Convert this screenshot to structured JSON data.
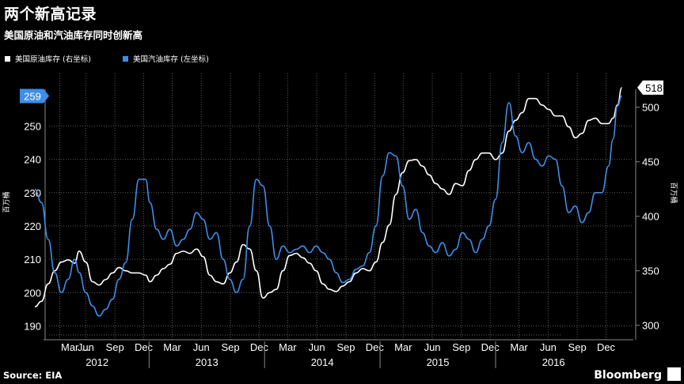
{
  "header": {
    "title": "两个新高记录",
    "subtitle": "美国原油和汽油库存同时创新高"
  },
  "footer": {
    "source": "Source: EIA",
    "brand": "Bloomberg"
  },
  "chart_data": {
    "type": "line",
    "title": "两个新高记录",
    "subtitle": "美国原油和汽油库存同时创新高",
    "legend_position": "top-left",
    "grid": true,
    "x_ticks": [
      "Mar ...",
      "Jun",
      "Sep",
      "Dec",
      "Mar",
      "Jun",
      "Sep",
      "Dec",
      "Mar",
      "Jun",
      "Sep",
      "Dec",
      "Mar",
      "Jun",
      "Sep",
      "Dec",
      "Mar",
      "Jun",
      "Sep",
      "Dec"
    ],
    "x_years": [
      "2012",
      "2013",
      "2014",
      "2015",
      "2016"
    ],
    "y_left": {
      "label": "百万桶",
      "ticks": [
        190,
        200,
        210,
        220,
        230,
        240,
        250
      ],
      "lim": [
        188,
        261
      ]
    },
    "y_right": {
      "label": "百万桶",
      "ticks": [
        300,
        350,
        400,
        450,
        500
      ],
      "lim": [
        294,
        520
      ]
    },
    "series": [
      {
        "name": "美国原油库存 (右坐标)",
        "axis": "right",
        "color": "#ffffff",
        "end_label": "518",
        "values": [
          [
            "2012-01-06",
            317
          ],
          [
            "2012-01-27",
            322
          ],
          [
            "2012-02-17",
            338
          ],
          [
            "2012-03-09",
            350
          ],
          [
            "2012-03-30",
            358
          ],
          [
            "2012-04-20",
            360
          ],
          [
            "2012-05-11",
            357
          ],
          [
            "2012-05-25",
            368
          ],
          [
            "2012-06-15",
            358
          ],
          [
            "2012-07-06",
            340
          ],
          [
            "2012-07-27",
            337
          ],
          [
            "2012-08-17",
            342
          ],
          [
            "2012-09-07",
            348
          ],
          [
            "2012-09-28",
            353
          ],
          [
            "2012-10-19",
            350
          ],
          [
            "2012-11-09",
            348
          ],
          [
            "2012-11-30",
            348
          ],
          [
            "2012-12-21",
            346
          ],
          [
            "2013-01-04",
            340
          ],
          [
            "2013-01-25",
            346
          ],
          [
            "2013-02-15",
            352
          ],
          [
            "2013-03-08",
            356
          ],
          [
            "2013-03-29",
            366
          ],
          [
            "2013-04-19",
            368
          ],
          [
            "2013-05-10",
            366
          ],
          [
            "2013-05-31",
            370
          ],
          [
            "2013-06-21",
            363
          ],
          [
            "2013-07-12",
            346
          ],
          [
            "2013-08-02",
            340
          ],
          [
            "2013-08-23",
            338
          ],
          [
            "2013-09-13",
            348
          ],
          [
            "2013-10-04",
            358
          ],
          [
            "2013-10-25",
            374
          ],
          [
            "2013-11-15",
            370
          ],
          [
            "2013-12-06",
            350
          ],
          [
            "2013-12-27",
            325
          ],
          [
            "2014-01-17",
            330
          ],
          [
            "2014-02-07",
            333
          ],
          [
            "2014-02-28",
            350
          ],
          [
            "2014-03-21",
            364
          ],
          [
            "2014-04-11",
            366
          ],
          [
            "2014-05-02",
            362
          ],
          [
            "2014-05-23",
            357
          ],
          [
            "2014-06-13",
            350
          ],
          [
            "2014-07-04",
            338
          ],
          [
            "2014-07-25",
            333
          ],
          [
            "2014-08-15",
            331
          ],
          [
            "2014-09-05",
            336
          ],
          [
            "2014-09-26",
            340
          ],
          [
            "2014-10-17",
            348
          ],
          [
            "2014-11-07",
            352
          ],
          [
            "2014-11-28",
            350
          ],
          [
            "2014-12-19",
            358
          ],
          [
            "2015-01-09",
            376
          ],
          [
            "2015-01-30",
            392
          ],
          [
            "2015-02-20",
            420
          ],
          [
            "2015-03-13",
            440
          ],
          [
            "2015-04-03",
            451
          ],
          [
            "2015-04-24",
            452
          ],
          [
            "2015-05-15",
            446
          ],
          [
            "2015-06-05",
            438
          ],
          [
            "2015-06-26",
            430
          ],
          [
            "2015-07-17",
            425
          ],
          [
            "2015-08-07",
            420
          ],
          [
            "2015-08-28",
            430
          ],
          [
            "2015-09-18",
            428
          ],
          [
            "2015-10-09",
            442
          ],
          [
            "2015-10-30",
            452
          ],
          [
            "2015-11-20",
            458
          ],
          [
            "2015-12-11",
            458
          ],
          [
            "2016-01-01",
            452
          ],
          [
            "2016-01-22",
            458
          ],
          [
            "2016-02-12",
            478
          ],
          [
            "2016-03-04",
            488
          ],
          [
            "2016-03-25",
            495
          ],
          [
            "2016-04-15",
            508
          ],
          [
            "2016-05-06",
            508
          ],
          [
            "2016-05-27",
            502
          ],
          [
            "2016-06-17",
            498
          ],
          [
            "2016-07-08",
            492
          ],
          [
            "2016-07-29",
            492
          ],
          [
            "2016-08-19",
            482
          ],
          [
            "2016-09-09",
            472
          ],
          [
            "2016-09-30",
            476
          ],
          [
            "2016-10-21",
            488
          ],
          [
            "2016-11-11",
            490
          ],
          [
            "2016-12-02",
            485
          ],
          [
            "2016-12-23",
            485
          ],
          [
            "2017-01-06",
            490
          ],
          [
            "2017-01-20",
            502
          ],
          [
            "2017-02-03",
            518
          ]
        ]
      },
      {
        "name": "美国汽油库存 (左坐标)",
        "axis": "left",
        "color": "#3d8ee8",
        "end_label": "259",
        "values": [
          [
            "2012-01-06",
            231
          ],
          [
            "2012-01-27",
            227
          ],
          [
            "2012-02-17",
            216
          ],
          [
            "2012-03-09",
            206
          ],
          [
            "2012-03-30",
            200
          ],
          [
            "2012-04-20",
            204
          ],
          [
            "2012-05-11",
            210
          ],
          [
            "2012-05-25",
            206
          ],
          [
            "2012-06-15",
            200
          ],
          [
            "2012-07-06",
            196
          ],
          [
            "2012-07-27",
            193
          ],
          [
            "2012-08-17",
            195
          ],
          [
            "2012-09-07",
            198
          ],
          [
            "2012-09-28",
            204
          ],
          [
            "2012-10-19",
            209
          ],
          [
            "2012-11-09",
            222
          ],
          [
            "2012-11-30",
            234
          ],
          [
            "2012-12-21",
            234
          ],
          [
            "2013-01-04",
            227
          ],
          [
            "2013-01-25",
            219
          ],
          [
            "2013-02-15",
            216
          ],
          [
            "2013-03-08",
            219
          ],
          [
            "2013-03-29",
            214
          ],
          [
            "2013-04-19",
            216
          ],
          [
            "2013-05-10",
            219
          ],
          [
            "2013-05-31",
            224
          ],
          [
            "2013-06-21",
            222
          ],
          [
            "2013-07-12",
            216
          ],
          [
            "2013-08-02",
            218
          ],
          [
            "2013-08-23",
            210
          ],
          [
            "2013-09-13",
            204
          ],
          [
            "2013-10-04",
            200
          ],
          [
            "2013-10-25",
            204
          ],
          [
            "2013-11-15",
            220
          ],
          [
            "2013-12-06",
            234
          ],
          [
            "2013-12-27",
            232
          ],
          [
            "2014-01-17",
            220
          ],
          [
            "2014-02-07",
            210
          ],
          [
            "2014-02-28",
            214
          ],
          [
            "2014-03-21",
            212
          ],
          [
            "2014-04-11",
            213
          ],
          [
            "2014-05-02",
            214
          ],
          [
            "2014-05-23",
            212
          ],
          [
            "2014-06-13",
            214
          ],
          [
            "2014-07-04",
            212
          ],
          [
            "2014-07-25",
            210
          ],
          [
            "2014-08-15",
            206
          ],
          [
            "2014-09-05",
            203
          ],
          [
            "2014-09-26",
            204
          ],
          [
            "2014-10-17",
            207
          ],
          [
            "2014-11-07",
            208
          ],
          [
            "2014-11-28",
            212
          ],
          [
            "2014-12-19",
            220
          ],
          [
            "2015-01-09",
            235
          ],
          [
            "2015-01-30",
            242
          ],
          [
            "2015-02-20",
            241
          ],
          [
            "2015-03-13",
            232
          ],
          [
            "2015-04-03",
            222
          ],
          [
            "2015-04-24",
            225
          ],
          [
            "2015-05-15",
            218
          ],
          [
            "2015-06-05",
            214
          ],
          [
            "2015-06-26",
            212
          ],
          [
            "2015-07-17",
            215
          ],
          [
            "2015-08-07",
            211
          ],
          [
            "2015-08-28",
            213
          ],
          [
            "2015-09-18",
            218
          ],
          [
            "2015-10-09",
            216
          ],
          [
            "2015-10-30",
            212
          ],
          [
            "2015-11-20",
            216
          ],
          [
            "2015-12-11",
            220
          ],
          [
            "2016-01-01",
            228
          ],
          [
            "2016-01-22",
            245
          ],
          [
            "2016-02-12",
            257
          ],
          [
            "2016-03-04",
            247
          ],
          [
            "2016-03-25",
            242
          ],
          [
            "2016-04-15",
            245
          ],
          [
            "2016-05-06",
            240
          ],
          [
            "2016-05-27",
            238
          ],
          [
            "2016-06-17",
            241
          ],
          [
            "2016-07-08",
            240
          ],
          [
            "2016-07-29",
            232
          ],
          [
            "2016-08-19",
            224
          ],
          [
            "2016-09-09",
            226
          ],
          [
            "2016-09-30",
            221
          ],
          [
            "2016-10-21",
            224
          ],
          [
            "2016-11-11",
            230
          ],
          [
            "2016-12-02",
            230
          ],
          [
            "2016-12-23",
            238
          ],
          [
            "2017-01-06",
            246
          ],
          [
            "2017-01-20",
            256
          ],
          [
            "2017-02-03",
            259
          ]
        ]
      }
    ]
  }
}
